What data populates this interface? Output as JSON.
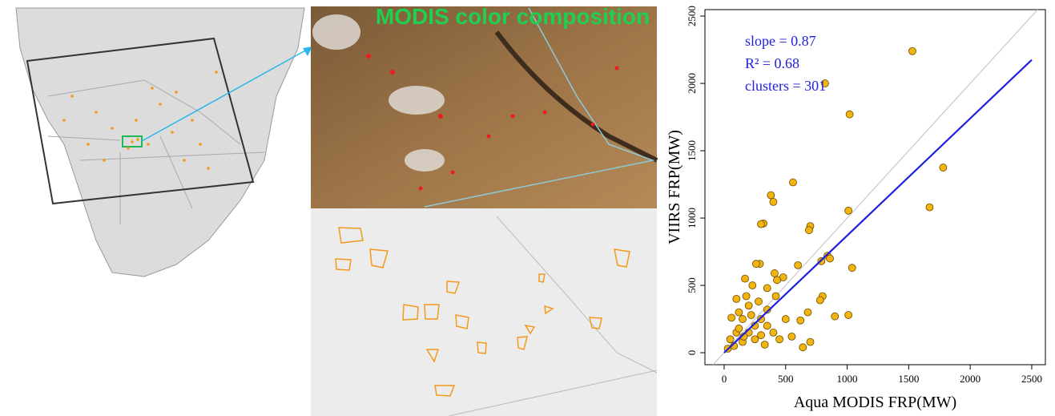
{
  "image_title": "MODIS color composition",
  "chart_data": {
    "type": "scatter",
    "x_label": "Aqua MODIS FRP(MW)",
    "y_label": "VIIRS FRP(MW)",
    "annotations": [
      "slope = 0.87",
      "R² = 0.68",
      "clusters = 301"
    ],
    "xlim": [
      -156,
      2611
    ],
    "ylim": [
      -89,
      2548
    ],
    "xticks": [
      0,
      500,
      1000,
      1500,
      2000,
      2500
    ],
    "yticks": [
      0,
      500,
      1000,
      1500,
      2000,
      2500
    ],
    "color": "#f2b50f",
    "fit_line": {
      "color": "#1f1fe0",
      "x": [
        0,
        2500
      ],
      "y": [
        0,
        2175
      ]
    },
    "x": [
      1530,
      820,
      1020,
      1780,
      1670,
      1010,
      560,
      380,
      400,
      320,
      300,
      700,
      690,
      600,
      840,
      860,
      790,
      1040,
      800,
      780,
      1010,
      680,
      620,
      550,
      480,
      410,
      430,
      350,
      290,
      260,
      170,
      230,
      100,
      120,
      150,
      200,
      250,
      300,
      350,
      400,
      450,
      200,
      100,
      50,
      80,
      150,
      250,
      300,
      350,
      420,
      500,
      180,
      60,
      30,
      120,
      220,
      280,
      160,
      330,
      700,
      640,
      900
    ],
    "values": [
      2240,
      2000,
      1770,
      1375,
      1080,
      1055,
      1265,
      1170,
      1120,
      960,
      955,
      940,
      910,
      650,
      720,
      700,
      680,
      630,
      420,
      390,
      280,
      300,
      240,
      120,
      560,
      590,
      540,
      480,
      660,
      660,
      550,
      500,
      400,
      300,
      250,
      350,
      200,
      250,
      200,
      150,
      100,
      150,
      150,
      100,
      50,
      80,
      100,
      130,
      320,
      420,
      250,
      420,
      260,
      30,
      180,
      280,
      380,
      120,
      60,
      80,
      40,
      270
    ]
  }
}
